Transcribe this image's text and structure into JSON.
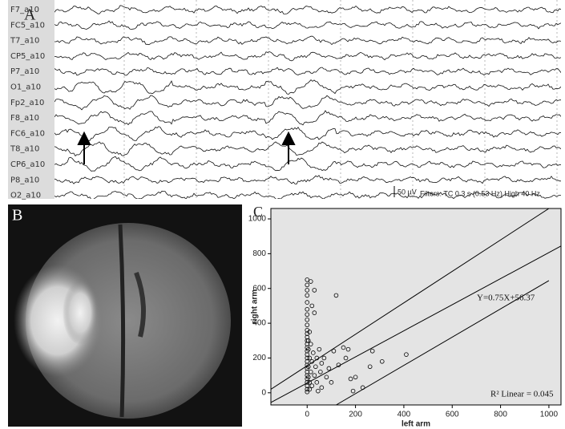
{
  "panel_labels": [
    "A",
    "B",
    "C"
  ],
  "eeg": {
    "channels": [
      "F7_a10",
      "FC5_a10",
      "T7_a10",
      "CP5_a10",
      "P7_a10",
      "O1_a10",
      "Fp2_a10",
      "F8_a10",
      "FC6_a10",
      "T8_a10",
      "CP6_a10",
      "P8_a10",
      "O2_a10"
    ],
    "scale_label": "50 µV",
    "filters": "Filters: TC 0.3 s (0.53 Hz)  High 40 Hz"
  },
  "chart_data": {
    "type": "scatter",
    "x_label": "left arm",
    "y_label": "right arm",
    "xlim": [
      -150,
      1050
    ],
    "ylim": [
      -70,
      1060
    ],
    "xticks": [
      0,
      200,
      400,
      600,
      800,
      1000
    ],
    "yticks": [
      0,
      200,
      400,
      600,
      800,
      1000
    ],
    "equation": "Y=0.75X+56.37",
    "r2_label": "R² Linear = 0.045",
    "fit": {
      "slope": 0.75,
      "intercept": 56.37
    },
    "interval_lines": [
      {
        "x": [
          -150,
          1000
        ],
        "y": [
          20,
          1060
        ]
      },
      {
        "x": [
          120,
          1000
        ],
        "y": [
          -70,
          645
        ]
      }
    ],
    "series": [
      {
        "color": "#000000",
        "x": [
          0,
          0,
          0,
          0,
          0,
          0,
          0,
          0,
          0,
          0,
          0,
          0,
          0,
          0,
          0,
          0,
          0,
          0,
          0,
          0,
          0,
          0,
          0,
          0,
          0,
          0,
          0,
          0,
          5,
          5,
          5,
          5,
          10,
          10,
          10,
          10,
          15,
          15,
          20,
          20,
          20,
          25,
          30,
          30,
          35,
          40,
          40,
          45,
          50,
          55,
          60,
          60,
          70,
          80,
          90,
          100,
          110,
          120,
          130,
          150,
          160,
          170,
          180,
          190,
          200,
          230,
          270,
          260,
          310,
          410,
          15,
          30
        ],
        "y": [
          650,
          620,
          590,
          560,
          520,
          480,
          450,
          420,
          390,
          360,
          340,
          320,
          300,
          280,
          260,
          240,
          220,
          200,
          180,
          160,
          140,
          120,
          100,
          80,
          60,
          40,
          20,
          5,
          300,
          250,
          150,
          90,
          350,
          200,
          60,
          20,
          280,
          120,
          500,
          180,
          40,
          230,
          100,
          460,
          150,
          200,
          60,
          10,
          250,
          120,
          170,
          30,
          200,
          90,
          140,
          60,
          240,
          560,
          160,
          260,
          200,
          250,
          80,
          10,
          90,
          30,
          240,
          150,
          180,
          220,
          640,
          590
        ]
      }
    ]
  }
}
